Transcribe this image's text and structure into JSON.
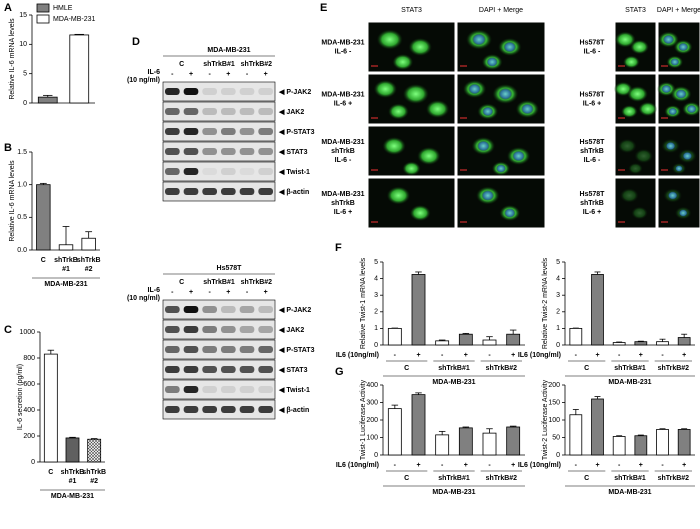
{
  "panel_labels": [
    "A",
    "B",
    "C",
    "D",
    "E",
    "F",
    "G"
  ],
  "chart_data": [
    {
      "type": "bar",
      "y_label": "Relative IL-6 mRNA levels",
      "categories": [
        null,
        null
      ],
      "series": [
        {
          "name": "HMLE",
          "color": "#808080",
          "values": [
            1.0,
            null
          ],
          "errors": [
            0.3,
            null
          ]
        },
        {
          "name": "MDA-MB-231",
          "color": "#ffffff",
          "values": [
            null,
            11.6
          ],
          "errors": [
            null,
            0.1
          ]
        }
      ],
      "ylim": [
        0,
        15
      ],
      "yticks": [
        0,
        5,
        10,
        15
      ]
    },
    {
      "type": "bar",
      "y_label": "Relative IL-6 mRNA levels",
      "categories": [
        "C",
        [
          "shTrkB",
          "#1"
        ],
        [
          "shTrkB",
          "#2"
        ]
      ],
      "values": [
        1.0,
        0.08,
        0.18
      ],
      "errors": [
        0.02,
        0.28,
        0.1
      ],
      "colors": [
        "#808080",
        "#ffffff",
        "#ffffff"
      ],
      "group_label": "MDA-MB-231",
      "ylim": [
        0,
        1.5
      ],
      "yticks": [
        {
          "value": 0,
          "label": "0.0"
        },
        0.5,
        {
          "value": 1,
          "label": "1.0"
        },
        1.5
      ]
    },
    {
      "type": "bar",
      "y_label": "IL-6  secretion (pg/ml)",
      "categories": [
        "C",
        [
          "shTrkB",
          "#1"
        ],
        [
          "shTrkB",
          "#2"
        ]
      ],
      "values": [
        830,
        185,
        175
      ],
      "errors": [
        30,
        5,
        5
      ],
      "colors": [
        "#ffffff",
        "#606060",
        "#c0c0c0"
      ],
      "group_label": "MDA-MB-231",
      "ylim": [
        0,
        1000
      ],
      "yticks": [
        0,
        200,
        400,
        600,
        800,
        1000
      ]
    },
    {
      "type": "bar",
      "y_label": "Relative Twist-1 mRNA levels",
      "treatment_label": "IL6 (10ng/ml)",
      "categories": [
        "-",
        "+",
        "-",
        "+",
        "-",
        "+"
      ],
      "groups": [
        "C",
        "shTrkB#1",
        "shTrkB#2"
      ],
      "values": [
        1.0,
        4.25,
        0.25,
        0.65,
        0.3,
        0.65
      ],
      "errors": [
        0.02,
        0.15,
        0.05,
        0.05,
        0.2,
        0.25
      ],
      "colors": [
        "#ffffff",
        "#808080",
        "#ffffff",
        "#808080",
        "#ffffff",
        "#808080"
      ],
      "group_label": "MDA-MB-231",
      "ylim": [
        0,
        5
      ],
      "yticks": [
        0,
        1,
        2,
        3,
        4,
        5
      ]
    },
    {
      "type": "bar",
      "y_label": "Relative Twist-2 mRNA levels",
      "treatment_label": "IL6 (10ng/ml)",
      "categories": [
        "-",
        "+",
        "-",
        "+",
        "-",
        "+"
      ],
      "groups": [
        "C",
        "shTrkB#1",
        "shTrkB#2"
      ],
      "values": [
        1.0,
        4.25,
        0.15,
        0.2,
        0.2,
        0.45
      ],
      "errors": [
        0.02,
        0.15,
        0.03,
        0.03,
        0.15,
        0.2
      ],
      "colors": [
        "#ffffff",
        "#808080",
        "#ffffff",
        "#808080",
        "#ffffff",
        "#808080"
      ],
      "group_label": "MDA-MB-231",
      "ylim": [
        0,
        5
      ],
      "yticks": [
        0,
        1,
        2,
        3,
        4,
        5
      ]
    },
    {
      "type": "bar",
      "y_label": "Twist-1 Luciferase Activity",
      "treatment_label": "IL6 (10ng/ml)",
      "categories": [
        "-",
        "+",
        "-",
        "+",
        "-",
        "+"
      ],
      "groups": [
        "C",
        "shTrkB#1",
        "shTrkB#2"
      ],
      "values": [
        265,
        345,
        115,
        155,
        125,
        160
      ],
      "errors": [
        20,
        10,
        20,
        5,
        25,
        5
      ],
      "colors": [
        "#ffffff",
        "#808080",
        "#ffffff",
        "#808080",
        "#ffffff",
        "#808080"
      ],
      "group_label": "MDA-MB-231",
      "ylim": [
        0,
        400
      ],
      "yticks": [
        0,
        100,
        200,
        300,
        400
      ]
    },
    {
      "type": "bar",
      "y_label": "Twist-2 Luciferase Activity",
      "treatment_label": "IL6 (10ng/ml)",
      "categories": [
        "-",
        "+",
        "-",
        "+",
        "-",
        "+"
      ],
      "groups": [
        "C",
        "shTrkB#1",
        "shTrkB#2"
      ],
      "values": [
        115,
        160,
        53,
        55,
        73,
        73
      ],
      "errors": [
        15,
        7,
        2,
        2,
        2,
        2
      ],
      "colors": [
        "#ffffff",
        "#808080",
        "#ffffff",
        "#808080",
        "#ffffff",
        "#808080"
      ],
      "group_label": "MDA-MB-231",
      "ylim": [
        0,
        200
      ],
      "yticks": [
        0,
        50,
        100,
        150,
        200
      ]
    }
  ],
  "blots": [
    {
      "title": "MDA-MB-231",
      "treatment": [
        "IL-6",
        "(10 ng/ml)"
      ],
      "groups": [
        "C",
        "shTrkB#1",
        "shTrkB#2"
      ],
      "signs": [
        "-",
        "+",
        "-",
        "+",
        "-",
        "+"
      ],
      "bands": [
        "◀ P-JAK2",
        "◀ JAK2",
        "◀ P-STAT3",
        "◀ STAT3",
        "◀ Twist-1",
        "◀ β-actin"
      ]
    },
    {
      "title": "Hs578T",
      "treatment": [
        "IL-6",
        "(10 ng/ml)"
      ],
      "groups": [
        "C",
        "shTrkB#1",
        "shTrkB#2"
      ],
      "signs": [
        "-",
        "+",
        "-",
        "+",
        "-",
        "+"
      ],
      "bands": [
        "◀ P-JAK2",
        "◀ JAK2",
        "◀ P-STAT3",
        "◀ STAT3",
        "◀ Twist-1",
        "◀ β-actin"
      ]
    }
  ],
  "micrographs": [
    {
      "columns": [
        "STAT3",
        "DAPI + Merge"
      ],
      "rows": [
        [
          "MDA-MB-231",
          "IL-6 -"
        ],
        [
          "MDA-MB-231",
          "IL-6 +"
        ],
        [
          "MDA-MB-231",
          "shTrkB",
          "IL-6 -"
        ],
        [
          "MDA-MB-231",
          "shTrkB",
          "IL-6 +"
        ]
      ]
    },
    {
      "columns": [
        "STAT3",
        "DAPI + Merge"
      ],
      "rows": [
        [
          "Hs578T",
          "IL-6 -"
        ],
        [
          "Hs578T",
          "IL-6 +"
        ],
        [
          "Hs578T",
          "shTrkB",
          "IL-6 -"
        ],
        [
          "Hs578T",
          "shTrkB",
          "IL-6 +"
        ]
      ]
    }
  ]
}
